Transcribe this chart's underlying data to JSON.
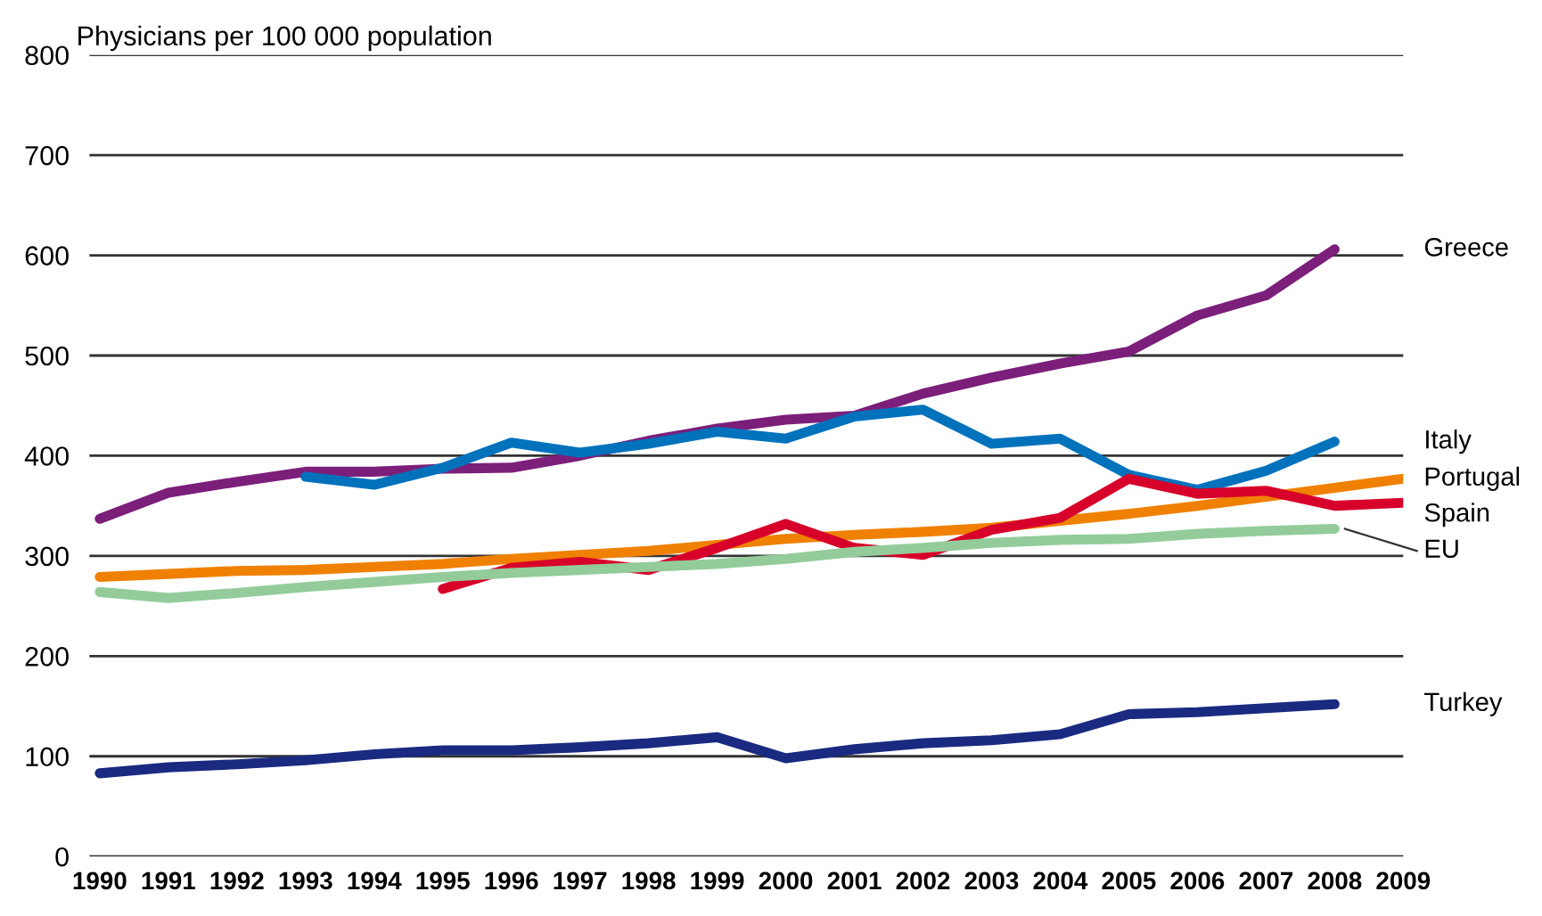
{
  "chart_data": {
    "type": "line",
    "ylabel": "Physicians per 100 000 population",
    "categories": [
      "1990",
      "1991",
      "1992",
      "1993",
      "1994",
      "1995",
      "1996",
      "1997",
      "1998",
      "1999",
      "2000",
      "2001",
      "2002",
      "2003",
      "2004",
      "2005",
      "2006",
      "2007",
      "2008",
      "2009"
    ],
    "ylim": [
      0,
      800
    ],
    "yticks": [
      0,
      100,
      200,
      300,
      400,
      500,
      600,
      700,
      800
    ],
    "grid": "y",
    "legend": false,
    "marker": "none",
    "line_style": "solid",
    "series": [
      {
        "name": "Greece",
        "color": "#7b1f7a",
        "values": [
          337,
          363,
          374,
          384,
          384,
          387,
          388,
          400,
          415,
          427,
          436,
          440,
          462,
          478,
          492,
          504,
          540,
          560,
          606,
          null
        ]
      },
      {
        "name": "Italy",
        "color": "#0072bc",
        "values": [
          null,
          null,
          null,
          379,
          371,
          388,
          413,
          403,
          412,
          424,
          417,
          439,
          446,
          412,
          417,
          381,
          366,
          385,
          414,
          null
        ]
      },
      {
        "name": "Portugal",
        "color": "#f08000",
        "values": [
          279,
          282,
          285,
          286,
          289,
          292,
          297,
          301,
          305,
          311,
          317,
          321,
          324,
          328,
          335,
          342,
          350,
          359,
          368,
          377
        ]
      },
      {
        "name": "Spain",
        "color": "#d7002a",
        "values": [
          null,
          null,
          null,
          null,
          null,
          267,
          288,
          294,
          286,
          308,
          332,
          308,
          301,
          326,
          338,
          377,
          362,
          365,
          350,
          353
        ]
      },
      {
        "name": "EU",
        "color": "#93cc9a",
        "values": [
          264,
          258,
          263,
          269,
          274,
          279,
          283,
          286,
          289,
          292,
          297,
          304,
          308,
          313,
          316,
          317,
          322,
          325,
          327,
          null
        ]
      },
      {
        "name": "Turkey",
        "color": "#1a2a80",
        "values": [
          83,
          89,
          92,
          96,
          102,
          106,
          106,
          109,
          113,
          119,
          98,
          107,
          113,
          116,
          122,
          142,
          144,
          148,
          152,
          null
        ]
      }
    ]
  }
}
